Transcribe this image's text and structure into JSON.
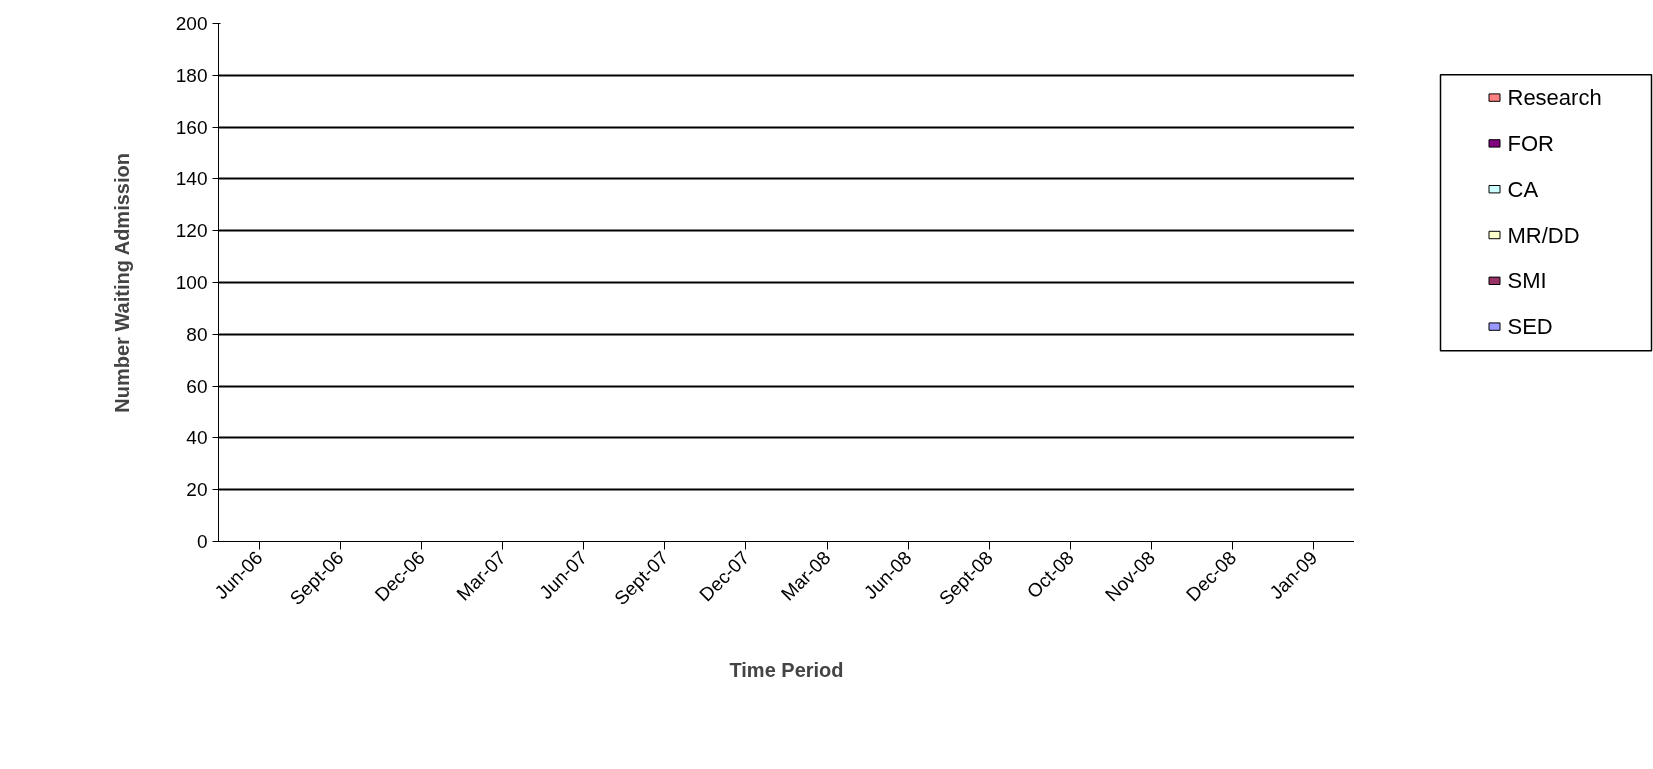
{
  "chart_data": {
    "type": "bar",
    "xlabel": "Time Period",
    "ylabel": "Number Waiting Admission",
    "categories": [
      "Jun-06",
      "Sept-06",
      "Dec-06",
      "Mar-07",
      "Jun-07",
      "Sept-07",
      "Dec-07",
      "Mar-08",
      "Jun-08",
      "Sept-08",
      "Oct-08",
      "Nov-08",
      "Dec-08",
      "Jan-09"
    ],
    "series": [
      {
        "name": "SED",
        "color": "#9999ff",
        "values": [
          0,
          0,
          0,
          0,
          0,
          0,
          0,
          0,
          0,
          0,
          0,
          0,
          0,
          0
        ]
      },
      {
        "name": "SMI",
        "color": "#993366",
        "values": [
          0,
          0,
          0,
          0,
          0,
          0,
          0,
          0,
          0,
          0,
          0,
          0,
          0,
          0
        ]
      },
      {
        "name": "MR/DD",
        "color": "#ffffcc",
        "values": [
          0,
          0,
          0,
          0,
          0,
          0,
          0,
          0,
          0,
          0,
          0,
          0,
          0,
          0
        ]
      },
      {
        "name": "CA",
        "color": "#ccffff",
        "values": [
          0,
          0,
          0,
          0,
          0,
          0,
          0,
          0,
          0,
          0,
          0,
          0,
          0,
          0
        ]
      },
      {
        "name": "FOR",
        "color": "#800080",
        "values": [
          0,
          0,
          0,
          0,
          0,
          0,
          0,
          0,
          0,
          0,
          0,
          0,
          0,
          0
        ]
      },
      {
        "name": "Research",
        "color": "#ff8080",
        "values": [
          0,
          0,
          0,
          0,
          0,
          0,
          0,
          0,
          0,
          0,
          0,
          0,
          0,
          0
        ]
      }
    ],
    "ylim": [
      0,
      200
    ],
    "yticks": [
      0,
      20,
      40,
      60,
      80,
      100,
      120,
      140,
      160,
      180,
      200
    ],
    "grid": "y",
    "legend": "right"
  }
}
